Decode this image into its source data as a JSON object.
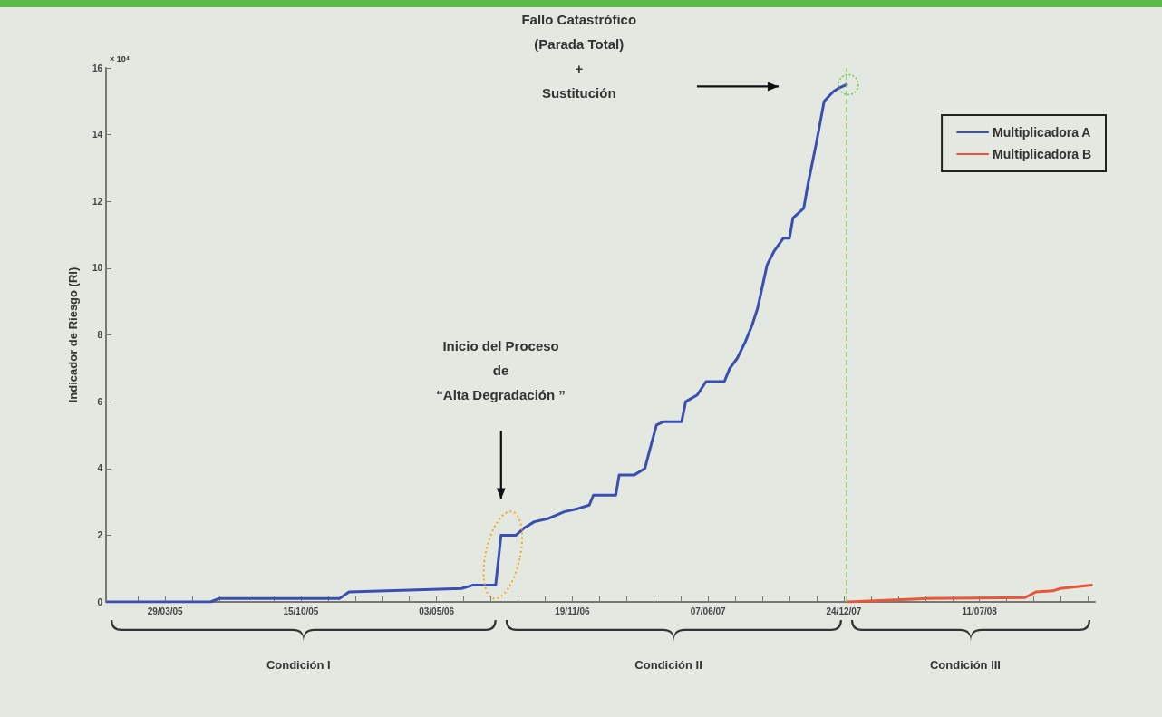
{
  "chart_data": {
    "type": "line",
    "ylabel": "Indicador de Riesgo (RI)",
    "annotations": [
      "× 10⁴",
      "Inicio del Proceso\nde\n“Alta Degradación ”",
      "Fallo Catastrófico\n(Parada Total)\n+\nSustitución",
      "Condición I",
      "Condición II",
      "Condición III"
    ],
    "xlim": [
      "2005-01-01",
      "2008-12-28"
    ],
    "xticks": [
      {
        "value": "2005-02-17",
        "label": null
      },
      {
        "value": "2005-03-29",
        "label": "29/03/05"
      },
      {
        "value": "2005-05-08",
        "label": null
      },
      {
        "value": "2005-06-17",
        "label": null
      },
      {
        "value": "2005-07-27",
        "label": null
      },
      {
        "value": "2005-09-05",
        "label": null
      },
      {
        "value": "2005-10-15",
        "label": "15/10/05"
      },
      {
        "value": "2005-11-24",
        "label": null
      },
      {
        "value": "2006-01-03",
        "label": null
      },
      {
        "value": "2006-02-12",
        "label": null
      },
      {
        "value": "2006-03-24",
        "label": null
      },
      {
        "value": "2006-05-03",
        "label": "03/05/06"
      },
      {
        "value": "2006-06-12",
        "label": null
      },
      {
        "value": "2006-07-22",
        "label": null
      },
      {
        "value": "2006-08-31",
        "label": null
      },
      {
        "value": "2006-10-10",
        "label": null
      },
      {
        "value": "2006-11-19",
        "label": "19/11/06"
      },
      {
        "value": "2006-12-29",
        "label": null
      },
      {
        "value": "2007-02-07",
        "label": null
      },
      {
        "value": "2007-03-19",
        "label": null
      },
      {
        "value": "2007-04-28",
        "label": null
      },
      {
        "value": "2007-06-07",
        "label": "07/06/07"
      },
      {
        "value": "2007-07-17",
        "label": null
      },
      {
        "value": "2007-08-26",
        "label": null
      },
      {
        "value": "2007-10-05",
        "label": null
      },
      {
        "value": "2007-11-14",
        "label": null
      },
      {
        "value": "2007-12-24",
        "label": "24/12/07"
      },
      {
        "value": "2008-02-02",
        "label": null
      },
      {
        "value": "2008-03-13",
        "label": null
      },
      {
        "value": "2008-04-22",
        "label": null
      },
      {
        "value": "2008-06-01",
        "label": null
      },
      {
        "value": "2008-07-11",
        "label": "11/07/08"
      },
      {
        "value": "2008-08-20",
        "label": null
      },
      {
        "value": "2008-09-29",
        "label": null
      },
      {
        "value": "2008-11-08",
        "label": null
      },
      {
        "value": "2008-12-18",
        "label": null
      }
    ],
    "ylim": [
      0,
      16
    ],
    "yticks": [
      0,
      2,
      4,
      6,
      8,
      10,
      12,
      14,
      16
    ],
    "legend": "top right",
    "marker": "none",
    "line_style": "solid",
    "ref_lines": [
      {
        "axis": "x",
        "value": "2007-12-28",
        "color": "#8cc96a",
        "line_style": "dashed"
      }
    ],
    "series": [
      {
        "name": "Multiplicadora A",
        "color": "#3a4fb0",
        "x": [
          "2005-01-03",
          "2005-06-04",
          "2005-06-16",
          "2005-12-11",
          "2005-12-25",
          "2006-06-09",
          "2006-06-25",
          "2006-07-29",
          "2006-08-06",
          "2006-08-28",
          "2006-09-08",
          "2006-09-24",
          "2006-10-15",
          "2006-11-07",
          "2006-11-28",
          "2006-12-14",
          "2006-12-20",
          "2007-01-22",
          "2007-01-27",
          "2007-02-18",
          "2007-03-06",
          "2007-03-11",
          "2007-03-23",
          "2007-04-03",
          "2007-04-29",
          "2007-05-05",
          "2007-05-22",
          "2007-06-04",
          "2007-07-01",
          "2007-07-09",
          "2007-07-20",
          "2007-08-01",
          "2007-08-11",
          "2007-08-19",
          "2007-09-02",
          "2007-09-12",
          "2007-09-26",
          "2007-10-05",
          "2007-10-10",
          "2007-10-26",
          "2007-11-01",
          "2007-11-14",
          "2007-11-25",
          "2007-12-09",
          "2007-12-17",
          "2007-12-28"
        ],
        "values": [
          0,
          0,
          0.1,
          0.1,
          0.3,
          0.4,
          0.5,
          0.5,
          2.0,
          2.0,
          2.2,
          2.4,
          2.5,
          2.7,
          2.8,
          2.9,
          3.2,
          3.2,
          3.8,
          3.8,
          4.0,
          4.4,
          5.3,
          5.4,
          5.4,
          6.0,
          6.2,
          6.6,
          6.6,
          7.0,
          7.3,
          7.8,
          8.3,
          8.8,
          10.1,
          10.5,
          10.9,
          10.9,
          11.5,
          11.8,
          12.5,
          13.8,
          15.0,
          15.3,
          15.4,
          15.5
        ]
      },
      {
        "name": "Multiplicadora B",
        "color": "#e8553a",
        "x": [
          "2007-12-29",
          "2008-04-21",
          "2008-09-16",
          "2008-10-02",
          "2008-10-27",
          "2008-11-07",
          "2008-12-23"
        ],
        "values": [
          0,
          0.1,
          0.13,
          0.3,
          0.33,
          0.4,
          0.5
        ]
      }
    ]
  }
}
